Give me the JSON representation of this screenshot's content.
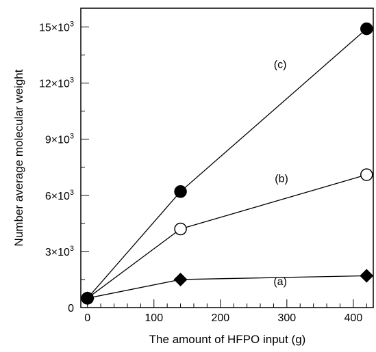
{
  "chart_data": {
    "type": "line",
    "xlabel": "The amount of HFPO input (g)",
    "ylabel": "Number average molecular weight",
    "xlim": [
      -10,
      430
    ],
    "ylim": [
      0,
      16000
    ],
    "xticks": [
      0,
      100,
      200,
      300,
      400
    ],
    "xtick_labels": [
      "0",
      "100",
      "200",
      "300",
      "400"
    ],
    "yticks": [
      0,
      3000,
      6000,
      9000,
      12000,
      15000
    ],
    "ytick_labels": [
      {
        "base": "0",
        "exp": ""
      },
      {
        "base": "3×10",
        "exp": "3"
      },
      {
        "base": "6×10",
        "exp": "3"
      },
      {
        "base": "9×10",
        "exp": "3"
      },
      {
        "base": "12×10",
        "exp": "3"
      },
      {
        "base": "15×10",
        "exp": "3"
      }
    ],
    "grid": false,
    "series": [
      {
        "label": "(a)",
        "marker": "filled-diamond",
        "label_at": [
          290,
          1200
        ],
        "x": [
          0,
          140,
          420
        ],
        "y": [
          500,
          1500,
          1700
        ]
      },
      {
        "label": "(b)",
        "marker": "open-circle",
        "label_at": [
          292,
          6700
        ],
        "x": [
          0,
          140,
          420
        ],
        "y": [
          500,
          4200,
          7100
        ]
      },
      {
        "label": "(c)",
        "marker": "filled-circle",
        "label_at": [
          290,
          12800
        ],
        "x": [
          0,
          140,
          420
        ],
        "y": [
          500,
          6200,
          14900
        ]
      }
    ]
  }
}
